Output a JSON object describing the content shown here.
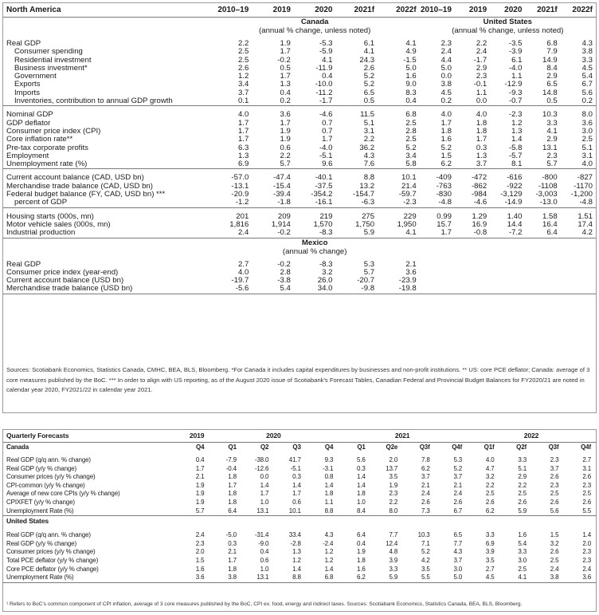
{
  "main": {
    "header": {
      "label": "North America",
      "canada_years": [
        "2010–19",
        "2019",
        "2020",
        "2021f",
        "2022f"
      ],
      "us_years": [
        "2010–19",
        "2019",
        "2020",
        "2021f",
        "2022f"
      ]
    },
    "canada_title": "Canada",
    "canada_sub": "(annual % change, unless noted)",
    "us_title": "United States",
    "us_sub": "(annual % change, unless noted)",
    "groups": [
      {
        "rows": [
          {
            "label": "Real GDP",
            "indent": false,
            "ca": [
              "2.2",
              "1.9",
              "-5.3",
              "6.1",
              "4.1"
            ],
            "us": [
              "2.3",
              "2.2",
              "-3.5",
              "6.8",
              "4.3"
            ]
          },
          {
            "label": "Consumer spending",
            "indent": true,
            "ca": [
              "2.5",
              "1.7",
              "-5.9",
              "4.1",
              "4.9"
            ],
            "us": [
              "2.4",
              "2.4",
              "-3.9",
              "7.9",
              "3.8"
            ]
          },
          {
            "label": "Residential investment",
            "indent": true,
            "ca": [
              "2.5",
              "-0.2",
              "4.1",
              "24.3",
              "-1.5"
            ],
            "us": [
              "4.4",
              "-1.7",
              "6.1",
              "14.9",
              "3.3"
            ]
          },
          {
            "label": "Business investment*",
            "indent": true,
            "ca": [
              "2.6",
              "0.5",
              "-11.9",
              "2.6",
              "5.0"
            ],
            "us": [
              "5.0",
              "2.9",
              "-4.0",
              "8.4",
              "4.5"
            ]
          },
          {
            "label": "Government",
            "indent": true,
            "ca": [
              "1.2",
              "1.7",
              "0.4",
              "5.2",
              "1.6"
            ],
            "us": [
              "0.0",
              "2.3",
              "1.1",
              "2.9",
              "5.4"
            ]
          },
          {
            "label": "Exports",
            "indent": true,
            "ca": [
              "3.4",
              "1.3",
              "-10.0",
              "5.2",
              "9.0"
            ],
            "us": [
              "3.8",
              "-0.1",
              "-12.9",
              "6.5",
              "6.7"
            ]
          },
          {
            "label": "Imports",
            "indent": true,
            "ca": [
              "3.7",
              "0.4",
              "-11.2",
              "6.5",
              "8.3"
            ],
            "us": [
              "4.5",
              "1.1",
              "-9.3",
              "14.8",
              "5.6"
            ]
          },
          {
            "label": "Inventories, contribution to annual GDP growth",
            "indent": true,
            "ca": [
              "0.1",
              "0.2",
              "-1.7",
              "0.5",
              "0.4"
            ],
            "us": [
              "0.2",
              "0.0",
              "-0.7",
              "0.5",
              "0.2"
            ]
          }
        ]
      },
      {
        "rows": [
          {
            "label": "Nominal GDP",
            "indent": false,
            "ca": [
              "4.0",
              "3.6",
              "-4.6",
              "11.5",
              "6.8"
            ],
            "us": [
              "4.0",
              "4.0",
              "-2.3",
              "10.3",
              "8.0"
            ]
          },
          {
            "label": "GDP deflator",
            "indent": false,
            "ca": [
              "1.7",
              "1.7",
              "0.7",
              "5.1",
              "2.5"
            ],
            "us": [
              "1.7",
              "1.8",
              "1.2",
              "3.3",
              "3.6"
            ]
          },
          {
            "label": "Consumer price index (CPI)",
            "indent": false,
            "ca": [
              "1.7",
              "1.9",
              "0.7",
              "3.1",
              "2.8"
            ],
            "us": [
              "1.8",
              "1.8",
              "1.3",
              "4.1",
              "3.0"
            ]
          },
          {
            "label": "Core inflation rate**",
            "indent": false,
            "ca": [
              "1.7",
              "1.9",
              "1.7",
              "2.2",
              "2.5"
            ],
            "us": [
              "1.6",
              "1.7",
              "1.4",
              "2.9",
              "2.5"
            ]
          },
          {
            "label": "Pre-tax corporate profits",
            "indent": false,
            "ca": [
              "6.3",
              "0.6",
              "-4.0",
              "36.2",
              "5.2"
            ],
            "us": [
              "5.2",
              "0.3",
              "-5.8",
              "13.1",
              "5.1"
            ]
          },
          {
            "label": "Employment",
            "indent": false,
            "ca": [
              "1.3",
              "2.2",
              "-5.1",
              "4.3",
              "3.4"
            ],
            "us": [
              "1.5",
              "1.3",
              "-5.7",
              "2.3",
              "3.1"
            ]
          },
          {
            "label": "Unemployment rate (%)",
            "indent": false,
            "ca": [
              "6.9",
              "5.7",
              "9.6",
              "7.6",
              "5.8"
            ],
            "us": [
              "6.2",
              "3.7",
              "8.1",
              "5.7",
              "4.0"
            ]
          }
        ]
      },
      {
        "rows": [
          {
            "label": "Current account balance (CAD, USD bn)",
            "indent": false,
            "ca": [
              "-57.0",
              "-47.4",
              "-40.1",
              "8.8",
              "10.1"
            ],
            "us": [
              "-409",
              "-472",
              "-616",
              "-800",
              "-827"
            ]
          },
          {
            "label": "Merchandise trade balance (CAD, USD bn)",
            "indent": false,
            "ca": [
              "-13.1",
              "-15.4",
              "-37.5",
              "13.2",
              "21.4"
            ],
            "us": [
              "-763",
              "-862",
              "-922",
              "-1108",
              "-1170"
            ]
          },
          {
            "label": "Federal budget balance (FY, CAD, USD bn) ***",
            "indent": false,
            "ca": [
              "-20.9",
              "-39.4",
              "-354.2",
              "-154.7",
              "-59.7"
            ],
            "us": [
              "-830",
              "-984",
              "-3,129",
              "-3,003",
              "-1,200"
            ]
          },
          {
            "label": "percent of GDP",
            "indent": true,
            "ca": [
              "-1.2",
              "-1.8",
              "-16.1",
              "-6.3",
              "-2.3"
            ],
            "us": [
              "-4.8",
              "-4.6",
              "-14.9",
              "-13.0",
              "-4.8"
            ]
          }
        ]
      },
      {
        "rows": [
          {
            "label": "Housing starts (000s, mn)",
            "indent": false,
            "ca": [
              "201",
              "209",
              "219",
              "275",
              "229"
            ],
            "us": [
              "0.99",
              "1.29",
              "1.40",
              "1.58",
              "1.51"
            ]
          },
          {
            "label": "Motor vehicle sales (000s, mn)",
            "indent": false,
            "ca": [
              "1,816",
              "1,914",
              "1,570",
              "1,750",
              "1,950"
            ],
            "us": [
              "15.7",
              "16.9",
              "14.4",
              "16.4",
              "17.4"
            ]
          },
          {
            "label": "Industrial production",
            "indent": false,
            "ca": [
              "2.4",
              "-0.2",
              "-8.3",
              "5.9",
              "4.1"
            ],
            "us": [
              "1.7",
              "-0.8",
              "-7.2",
              "6.4",
              "4.2"
            ]
          }
        ]
      }
    ],
    "mexico_title": "Mexico",
    "mexico_sub": "(annual % change)",
    "mexico_rows": [
      {
        "label": "Real GDP",
        "values": [
          "2.7",
          "-0.2",
          "-8.3",
          "5.3",
          "2.1"
        ]
      },
      {
        "label": "Consumer price index (year-end)",
        "values": [
          "4.0",
          "2.8",
          "3.2",
          "5.7",
          "3.6"
        ]
      },
      {
        "label": "Current account balance (USD bn)",
        "values": [
          "-19.7",
          "-3.8",
          "26.0",
          "-20.7",
          "-23.9"
        ]
      },
      {
        "label": "Merchandise trade balance (USD bn)",
        "values": [
          "-5.6",
          "5.4",
          "34.0",
          "-9.8",
          "-19.8"
        ]
      }
    ],
    "sources": "Sources: Scotiabank Economics, Statistics Canada, CMHC, BEA, BLS, Bloomberg. *For Canada it includes capital expenditures by businesses and non-profit institutions. ** US: core PCE deflator; Canada: average of 3 core measures published by the BoC. *** In order to align with US reporting, as of the August 2020 issue of Scotiabank's Forecast Tables, Canadian Federal and Provincial Budget Balances for FY2020/21 are noted in calendar year 2020, FY2021/22 in calendar year 2021."
  },
  "quarterly": {
    "title": "Quarterly Forecasts",
    "years": [
      "2019",
      "2020",
      "2021",
      "2022"
    ],
    "canada_label": "Canada",
    "quarters": [
      "Q4",
      "Q1",
      "Q2",
      "Q3",
      "Q4",
      "Q1",
      "Q2e",
      "Q3f",
      "Q4f",
      "Q1f",
      "Q2f",
      "Q3f",
      "Q4f"
    ],
    "canada_rows": [
      {
        "label": "Real GDP (q/q ann. % change)",
        "values": [
          "0.4",
          "-7.9",
          "-38.0",
          "41.7",
          "9.3",
          "5.6",
          "2.0",
          "7.8",
          "5.3",
          "4.0",
          "3.3",
          "2.3",
          "2.7"
        ]
      },
      {
        "label": "Real GDP (y/y % change)",
        "values": [
          "1.7",
          "-0.4",
          "-12.6",
          "-5.1",
          "-3.1",
          "0.3",
          "13.7",
          "6.2",
          "5.2",
          "4.7",
          "5.1",
          "3.7",
          "3.1"
        ]
      },
      {
        "label": "Consumer prices (y/y % change)",
        "values": [
          "2.1",
          "1.8",
          "0.0",
          "0.3",
          "0.8",
          "1.4",
          "3.5",
          "3.7",
          "3.7",
          "3.2",
          "2.9",
          "2.6",
          "2.6"
        ]
      },
      {
        "label": "CPI-common (y/y % change)",
        "values": [
          "1.9",
          "1.7",
          "1.4",
          "1.4",
          "1.4",
          "1.4",
          "1.9",
          "2.1",
          "2.1",
          "2.2",
          "2.2",
          "2.3",
          "2.3"
        ]
      },
      {
        "label": "Average of new core CPIs (y/y % change)",
        "values": [
          "1.9",
          "1.8",
          "1.7",
          "1.7",
          "1.8",
          "1.8",
          "2.3",
          "2.4",
          "2.4",
          "2.5",
          "2.5",
          "2.5",
          "2.5"
        ]
      },
      {
        "label": "CPIXFET (y/y % change)",
        "values": [
          "1.9",
          "1.8",
          "1.0",
          "0.6",
          "1.1",
          "1.0",
          "2.2",
          "2.6",
          "2.6",
          "2.6",
          "2.6",
          "2.6",
          "2.6"
        ]
      },
      {
        "label": "Unemployment Rate (%)",
        "values": [
          "5.7",
          "6.4",
          "13.1",
          "10.1",
          "8.8",
          "8.4",
          "8.0",
          "7.3",
          "6.7",
          "6.2",
          "5.9",
          "5.6",
          "5.5"
        ]
      }
    ],
    "us_label": "United States",
    "us_rows": [
      {
        "label": "Real GDP (q/q ann. % change)",
        "values": [
          "2.4",
          "-5.0",
          "-31.4",
          "33.4",
          "4.3",
          "6.4",
          "7.7",
          "10.3",
          "6.5",
          "3.3",
          "1.6",
          "1.5",
          "1.4"
        ]
      },
      {
        "label": "Real GDP (y/y % change)",
        "values": [
          "2.3",
          "0.3",
          "-9.0",
          "-2.8",
          "-2.4",
          "0.4",
          "12.4",
          "7.1",
          "7.7",
          "6.9",
          "5.4",
          "3.2",
          "2.0"
        ]
      },
      {
        "label": "Consumer prices (y/y % change)",
        "values": [
          "2.0",
          "2.1",
          "0.4",
          "1.3",
          "1.2",
          "1.9",
          "4.8",
          "5.2",
          "4.3",
          "3.9",
          "3.3",
          "2.6",
          "2.3"
        ]
      },
      {
        "label": "Total PCE deflator (y/y % change)",
        "values": [
          "1.5",
          "1.7",
          "0.6",
          "1.2",
          "1.2",
          "1.8",
          "3.9",
          "4.2",
          "3.7",
          "3.5",
          "3.0",
          "2.5",
          "2.3"
        ]
      },
      {
        "label": "Core PCE deflator (y/y % change)",
        "values": [
          "1.6",
          "1.8",
          "1.0",
          "1.4",
          "1.4",
          "1.6",
          "3.3",
          "3.5",
          "3.0",
          "2.7",
          "2.5",
          "2.4",
          "2.4"
        ]
      },
      {
        "label": "Unemployment Rate (%)",
        "values": [
          "3.6",
          "3.8",
          "13.1",
          "8.8",
          "6.8",
          "6.2",
          "5.9",
          "5.5",
          "5.0",
          "4.5",
          "4.1",
          "3.8",
          "3.6"
        ]
      }
    ],
    "footnote": "¹ Refers to BoC's common component of CPI inflation, average of 3 core measures published by the BoC, CPI ex. food, energy and indirect taxes. Sources: Scotiabank Economics, Statistics Canada, BEA, BLS, Bloomberg."
  }
}
